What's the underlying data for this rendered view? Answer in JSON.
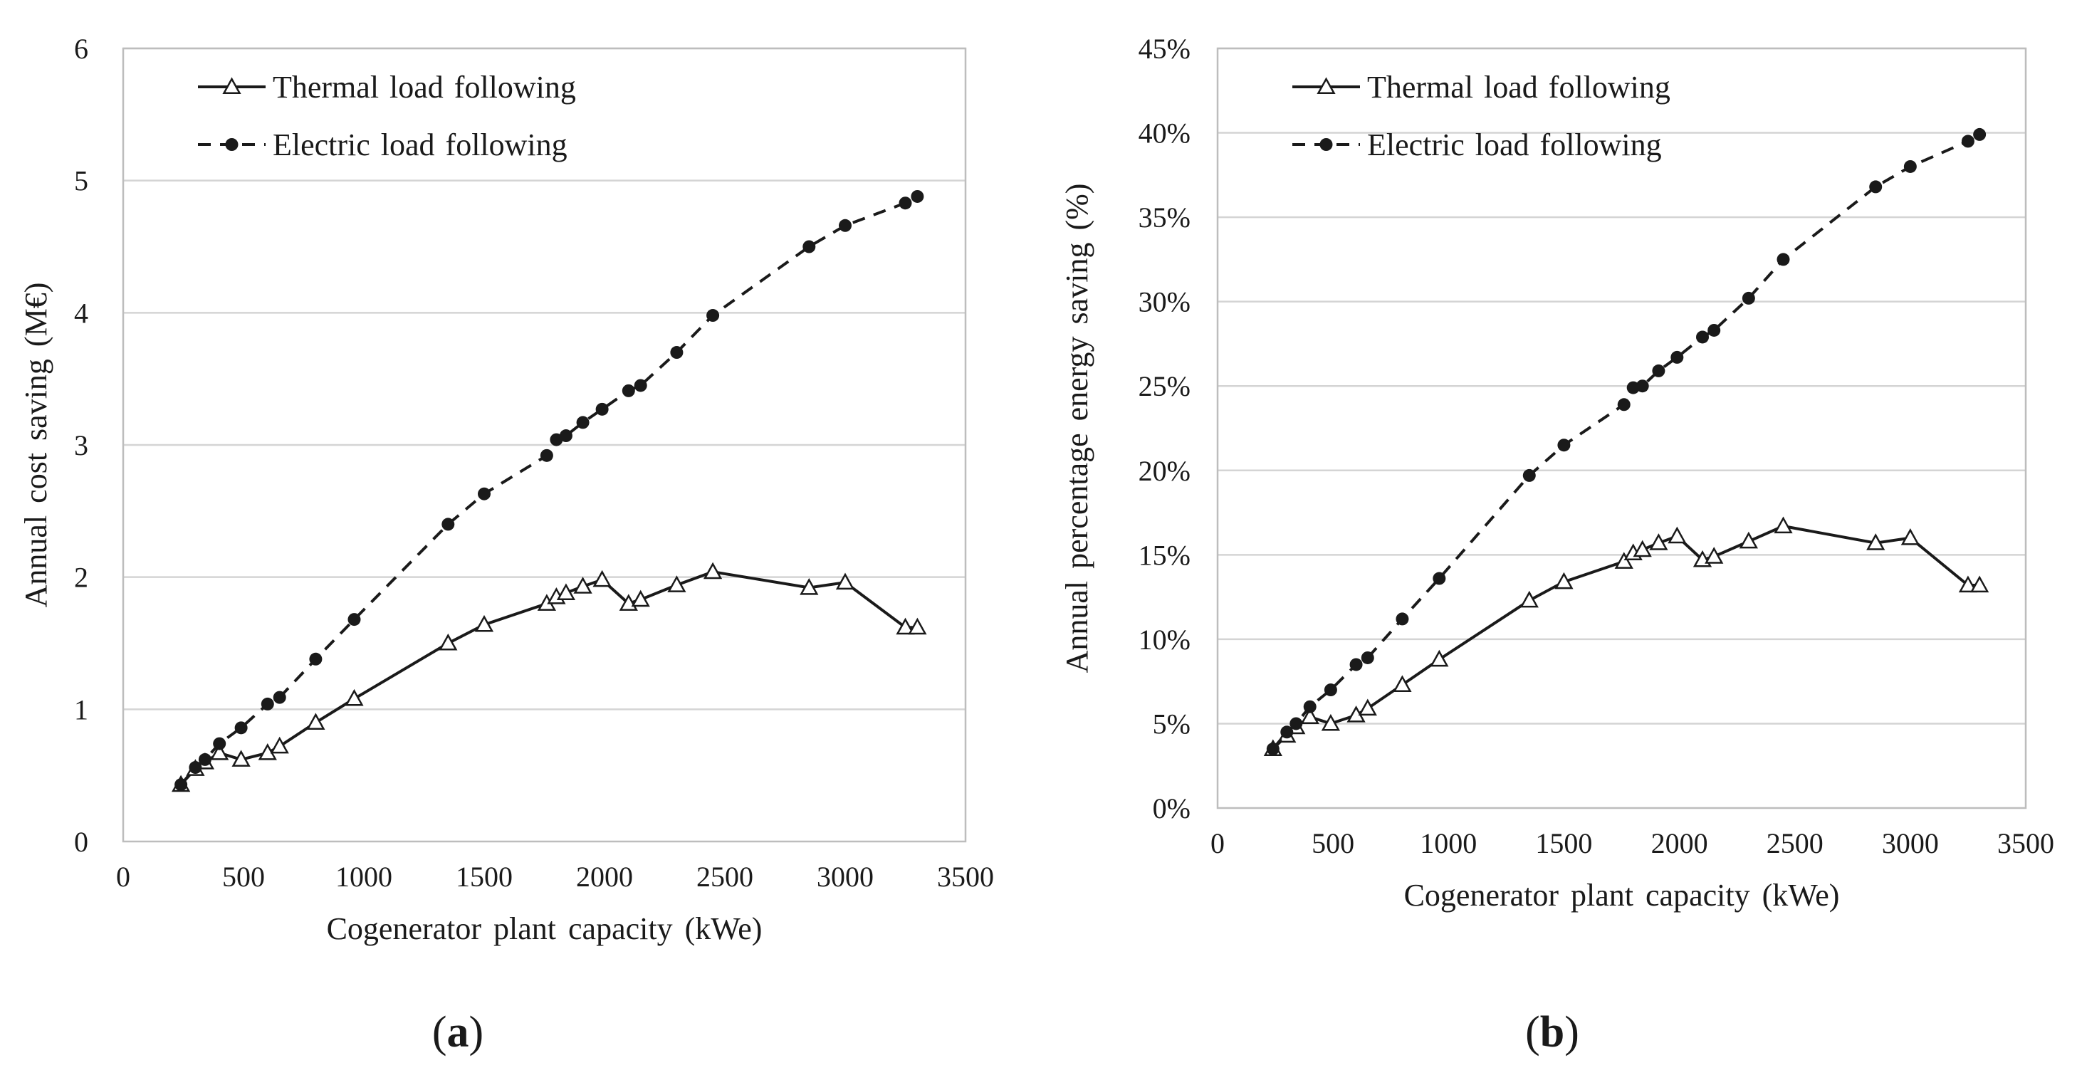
{
  "chart_data": [
    {
      "type": "line",
      "panel_label": "a",
      "xlabel": "Cogenerator plant capacity (kWe)",
      "ylabel": "Annual cost saving (M€)",
      "xlim": [
        0,
        3500
      ],
      "ylim": [
        0,
        6
      ],
      "x_ticks": [
        "0",
        "500",
        "1000",
        "1500",
        "2000",
        "2500",
        "3000",
        "3500"
      ],
      "y_ticks": [
        "0",
        "1",
        "2",
        "3",
        "4",
        "5",
        "6"
      ],
      "grid": "horizontal",
      "legend_position": "top-left",
      "series": [
        {
          "name": "Thermal load following",
          "style": "solid",
          "marker": "open-triangle",
          "color": "#1a1a1a",
          "x": [
            240,
            300,
            340,
            400,
            490,
            600,
            650,
            800,
            960,
            1350,
            1500,
            1760,
            1800,
            1840,
            1910,
            1990,
            2100,
            2150,
            2300,
            2450,
            2850,
            3000,
            3250,
            3300
          ],
          "y": [
            0.43,
            0.55,
            0.6,
            0.67,
            0.62,
            0.67,
            0.72,
            0.9,
            1.08,
            1.5,
            1.64,
            1.8,
            1.85,
            1.88,
            1.93,
            1.98,
            1.8,
            1.83,
            1.94,
            2.04,
            1.92,
            1.96,
            1.62,
            1.62
          ]
        },
        {
          "name": "Electric load following",
          "style": "dashed",
          "marker": "filled-circle",
          "color": "#1a1a1a",
          "x": [
            240,
            300,
            340,
            400,
            490,
            600,
            650,
            800,
            960,
            1350,
            1500,
            1760,
            1800,
            1840,
            1910,
            1990,
            2100,
            2150,
            2300,
            2450,
            2850,
            3000,
            3250,
            3300
          ],
          "y": [
            0.43,
            0.56,
            0.62,
            0.74,
            0.86,
            1.04,
            1.09,
            1.38,
            1.68,
            2.4,
            2.63,
            2.92,
            3.04,
            3.07,
            3.17,
            3.27,
            3.41,
            3.45,
            3.7,
            3.98,
            4.5,
            4.66,
            4.83,
            4.88
          ]
        }
      ]
    },
    {
      "type": "line",
      "panel_label": "b",
      "xlabel": "Cogenerator plant capacity (kWe)",
      "ylabel": "Annual percentage energy saving (%)",
      "xlim": [
        0,
        3500
      ],
      "ylim": [
        0,
        45
      ],
      "x_ticks": [
        "0",
        "500",
        "1000",
        "1500",
        "2000",
        "2500",
        "3000",
        "3500"
      ],
      "y_ticks": [
        "0%",
        "5%",
        "10%",
        "15%",
        "20%",
        "25%",
        "30%",
        "35%",
        "40%",
        "45%"
      ],
      "grid": "horizontal",
      "legend_position": "top-left",
      "series": [
        {
          "name": "Thermal load following",
          "style": "solid",
          "marker": "open-triangle",
          "color": "#1a1a1a",
          "x": [
            240,
            300,
            340,
            400,
            490,
            600,
            650,
            800,
            960,
            1350,
            1500,
            1760,
            1800,
            1840,
            1910,
            1990,
            2100,
            2150,
            2300,
            2450,
            2850,
            3000,
            3250,
            3300
          ],
          "y": [
            3.5,
            4.3,
            4.8,
            5.4,
            5.0,
            5.5,
            5.9,
            7.3,
            8.8,
            12.3,
            13.4,
            14.6,
            15.1,
            15.3,
            15.7,
            16.1,
            14.7,
            14.9,
            15.8,
            16.7,
            15.7,
            16.0,
            13.2,
            13.2
          ]
        },
        {
          "name": "Electric load following",
          "style": "dashed",
          "marker": "filled-circle",
          "color": "#1a1a1a",
          "x": [
            240,
            300,
            340,
            400,
            490,
            600,
            650,
            800,
            960,
            1350,
            1500,
            1760,
            1800,
            1840,
            1910,
            1990,
            2100,
            2150,
            2300,
            2450,
            2850,
            3000,
            3250,
            3300
          ],
          "y": [
            3.5,
            4.5,
            5.0,
            6.0,
            7.0,
            8.5,
            8.9,
            11.2,
            13.6,
            19.7,
            21.5,
            23.9,
            24.9,
            25.0,
            25.9,
            26.7,
            27.9,
            28.3,
            30.2,
            32.5,
            36.8,
            38.0,
            39.5,
            39.9
          ]
        }
      ]
    }
  ]
}
